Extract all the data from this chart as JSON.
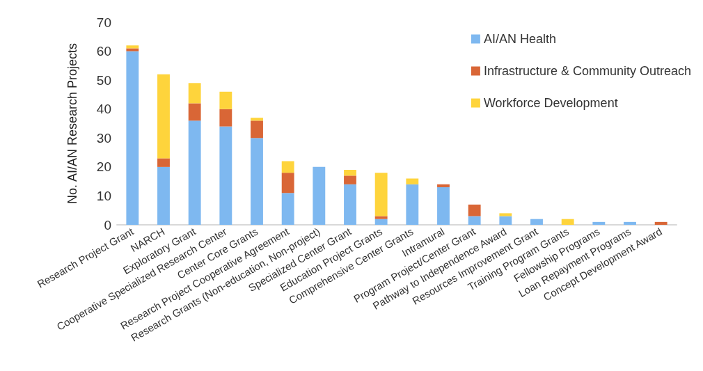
{
  "chart_data": {
    "type": "bar",
    "stacked": true,
    "ylabel": "No. AI/AN Research Projects",
    "categories": [
      "Research Project Grant",
      "NARCH",
      "Exploratory Grant",
      "Cooperative Specialized Research Center",
      "Center Core Grants",
      "Research Project Cooperative Agreement",
      "Research Grants (Non-education, Non-project)",
      "Specialized Center Grant",
      "Education Project Grants",
      "Comprehensive Center Grants",
      "Intramural",
      "Program Project/Center Grant",
      "Pathway to Independence Award",
      "Resources Improvement Grant",
      "Training Program Grants",
      "Fellowship Programs",
      "Loan Repayment Programs",
      "Concept Development Award"
    ],
    "series": [
      {
        "name": "AI/AN Health",
        "color": "#7eb8f0",
        "values": [
          60,
          20,
          36,
          34,
          30,
          11,
          20,
          14,
          2,
          14,
          13,
          3,
          3,
          2,
          0,
          1,
          1,
          0
        ]
      },
      {
        "name": "Infrastructure & Community Outreach",
        "color": "#d96636",
        "values": [
          1,
          3,
          6,
          6,
          6,
          7,
          0,
          3,
          1,
          0,
          1,
          4,
          0,
          0,
          0,
          0,
          0,
          1
        ]
      },
      {
        "name": "Workforce Development",
        "color": "#fed43c",
        "values": [
          1,
          29,
          7,
          6,
          1,
          4,
          0,
          2,
          15,
          2,
          0,
          0,
          1,
          0,
          2,
          0,
          0,
          0
        ]
      }
    ],
    "ylim": [
      0,
      70
    ],
    "yticks": [
      0,
      10,
      20,
      30,
      40,
      50,
      60,
      70
    ],
    "grid": false,
    "legend": "top right"
  }
}
